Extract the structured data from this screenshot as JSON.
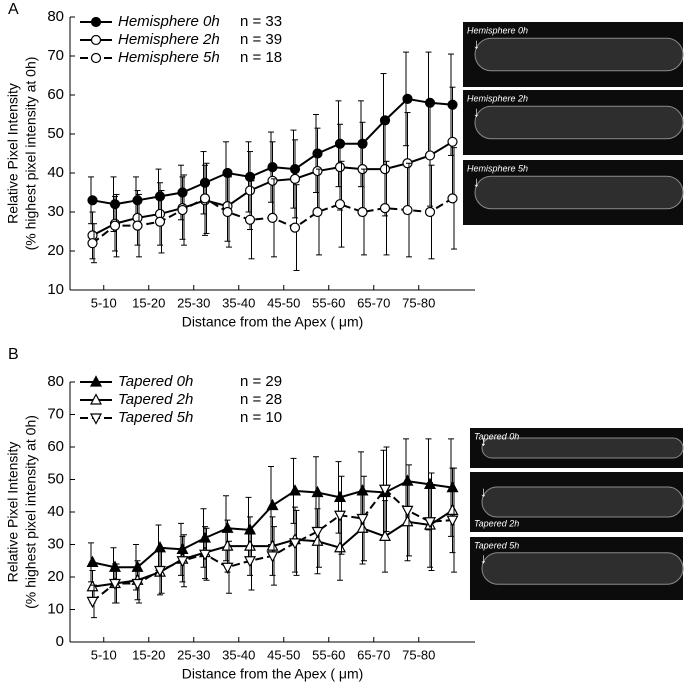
{
  "chart_data": [
    {
      "type": "line",
      "panel": "A",
      "xlabel": "Distance from the Apex ( μm)",
      "ylabel": [
        "Relative Pixel Intensity",
        "(% highest pixel intensity at 0h)"
      ],
      "x": [
        1,
        2,
        3,
        4,
        5,
        6,
        7,
        8,
        9,
        10,
        11,
        12,
        13,
        14,
        15,
        16,
        17
      ],
      "xlim": [
        0,
        18
      ],
      "xticks": [
        {
          "value": 1.5,
          "label": "5-10"
        },
        {
          "value": 3.5,
          "label": "15-20"
        },
        {
          "value": 5.5,
          "label": "25-30"
        },
        {
          "value": 7.5,
          "label": "35-40"
        },
        {
          "value": 9.5,
          "label": "45-50"
        },
        {
          "value": 11.5,
          "label": "55-60"
        },
        {
          "value": 13.5,
          "label": "65-70"
        },
        {
          "value": 15.5,
          "label": "75-80"
        }
      ],
      "ylim": [
        10,
        80
      ],
      "yticks": [
        10,
        20,
        30,
        40,
        50,
        60,
        70,
        80
      ],
      "series": [
        {
          "name": "Hemisphere 0h",
          "n_label": "n = 33",
          "color": "#000000",
          "marker": "circle",
          "filled": true,
          "dashed": false,
          "values": [
            33,
            32,
            33,
            34,
            35,
            37.5,
            40,
            39,
            41.5,
            41,
            45,
            47.5,
            47.5,
            53.5,
            59,
            58,
            57.5
          ],
          "errors": [
            6,
            7,
            6,
            7,
            7,
            8,
            8,
            9,
            9,
            10,
            10,
            11,
            11,
            12,
            12,
            13,
            13
          ]
        },
        {
          "name": "Hemisphere 2h",
          "n_label": "n = 39",
          "color": "#000000",
          "marker": "circle",
          "filled": false,
          "dashed": false,
          "values": [
            24,
            27,
            28.5,
            29.5,
            31,
            33,
            31.5,
            35.5,
            38,
            38.5,
            40.5,
            41.5,
            41,
            41,
            42.5,
            44.5,
            48
          ],
          "errors": [
            6,
            7,
            7,
            8,
            8,
            9,
            9,
            10,
            10,
            10,
            11,
            11,
            12,
            12,
            13,
            13,
            14
          ]
        },
        {
          "name": "Hemisphere 5h",
          "n_label": "n = 18",
          "color": "#000000",
          "marker": "circle",
          "filled": false,
          "dashed": true,
          "values": [
            22,
            26.5,
            26.5,
            27.5,
            30.5,
            33.5,
            30,
            28,
            28.5,
            26,
            30,
            32,
            30,
            31,
            30.5,
            30,
            33.5
          ],
          "errors": [
            5,
            8,
            8,
            8,
            9,
            9,
            9,
            10,
            10,
            11,
            11,
            11,
            11,
            12,
            12,
            12,
            13
          ]
        }
      ],
      "images": [
        "Hemisphere 0h",
        "Hemisphere 2h",
        "Hemisphere 5h"
      ]
    },
    {
      "type": "line",
      "panel": "B",
      "xlabel": "Distance from the Apex ( μm)",
      "ylabel": [
        "Relative Pixel Intensity",
        "(% highest pixel intensity at 0h)"
      ],
      "x": [
        1,
        2,
        3,
        4,
        5,
        6,
        7,
        8,
        9,
        10,
        11,
        12,
        13,
        14,
        15,
        16,
        17
      ],
      "xlim": [
        0,
        18
      ],
      "xticks": [
        {
          "value": 1.5,
          "label": "5-10"
        },
        {
          "value": 3.5,
          "label": "15-20"
        },
        {
          "value": 5.5,
          "label": "25-30"
        },
        {
          "value": 7.5,
          "label": "35-40"
        },
        {
          "value": 9.5,
          "label": "45-50"
        },
        {
          "value": 11.5,
          "label": "55-60"
        },
        {
          "value": 13.5,
          "label": "65-70"
        },
        {
          "value": 15.5,
          "label": "75-80"
        }
      ],
      "ylim": [
        0,
        80
      ],
      "yticks": [
        0,
        10,
        20,
        30,
        40,
        50,
        60,
        70,
        80
      ],
      "series": [
        {
          "name": "Tapered 0h",
          "n_label": "n = 29",
          "color": "#000000",
          "marker": "triangle-up",
          "filled": true,
          "dashed": false,
          "values": [
            24.5,
            23,
            23,
            29,
            28.5,
            32,
            35,
            34.5,
            42,
            46.5,
            46,
            44.5,
            46.5,
            46,
            49.5,
            48.5,
            47.5
          ],
          "errors": [
            6,
            6,
            7,
            7,
            8,
            9,
            10,
            10,
            12,
            10,
            11,
            11,
            12,
            13,
            13,
            14,
            15
          ]
        },
        {
          "name": "Tapered 2h",
          "n_label": "n = 28",
          "color": "#000000",
          "marker": "triangle-up",
          "filled": false,
          "dashed": false,
          "values": [
            17,
            18,
            19,
            21.5,
            25.5,
            27.5,
            29.5,
            29.5,
            29.5,
            31.5,
            31,
            29,
            35,
            32.5,
            37,
            36,
            40.5
          ],
          "errors": [
            5,
            6,
            6,
            7,
            7,
            8,
            8,
            9,
            9,
            10,
            10,
            10,
            11,
            11,
            12,
            13,
            13
          ]
        },
        {
          "name": "Tapered 5h",
          "n_label": "n = 10",
          "color": "#000000",
          "marker": "triangle-down",
          "filled": false,
          "dashed": true,
          "values": [
            12.5,
            18,
            18,
            22,
            25,
            27,
            23,
            25,
            26.5,
            30.5,
            34,
            39,
            38,
            47,
            40.5,
            37,
            37.5
          ],
          "errors": [
            5,
            6,
            6,
            7,
            8,
            8,
            8,
            9,
            9,
            10,
            11,
            12,
            13,
            13,
            14,
            15,
            16
          ]
        }
      ],
      "images": [
        "Tapered 0h",
        "Tapered 2h",
        "Tapered 5h"
      ]
    }
  ]
}
